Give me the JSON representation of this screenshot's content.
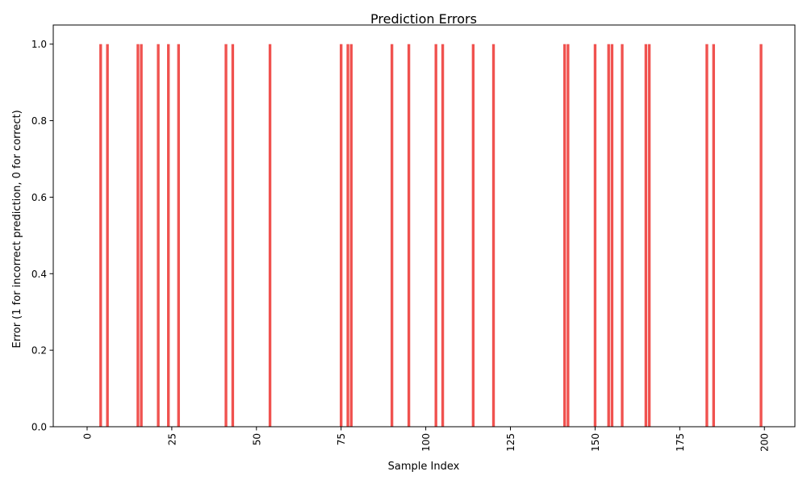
{
  "chart_data": {
    "type": "bar",
    "title": "Prediction Errors",
    "xlabel": "Sample Index",
    "ylabel": "Error (1 for incorrect prediction, 0 for correct)",
    "xlim": [
      -10,
      209
    ],
    "ylim": [
      0,
      1.05
    ],
    "x_ticks": [
      0,
      25,
      50,
      75,
      100,
      125,
      150,
      175,
      200
    ],
    "x_tick_labels": [
      "0",
      "25",
      "50",
      "75",
      "100",
      "125",
      "150",
      "175",
      "200"
    ],
    "y_ticks": [
      0.0,
      0.2,
      0.4,
      0.6,
      0.8,
      1.0
    ],
    "y_tick_labels": [
      "0.0",
      "0.2",
      "0.4",
      "0.6",
      "0.8",
      "1.0"
    ],
    "x_tick_rotation": 90,
    "grid": false,
    "bar_color": "#f0524f",
    "bar_width": 0.8,
    "error_indices": [
      4,
      6,
      15,
      16,
      21,
      24,
      27,
      41,
      43,
      54,
      75,
      77,
      78,
      90,
      95,
      103,
      105,
      114,
      120,
      141,
      142,
      150,
      154,
      155,
      158,
      165,
      166,
      183,
      185,
      199
    ],
    "error_value": 1
  }
}
